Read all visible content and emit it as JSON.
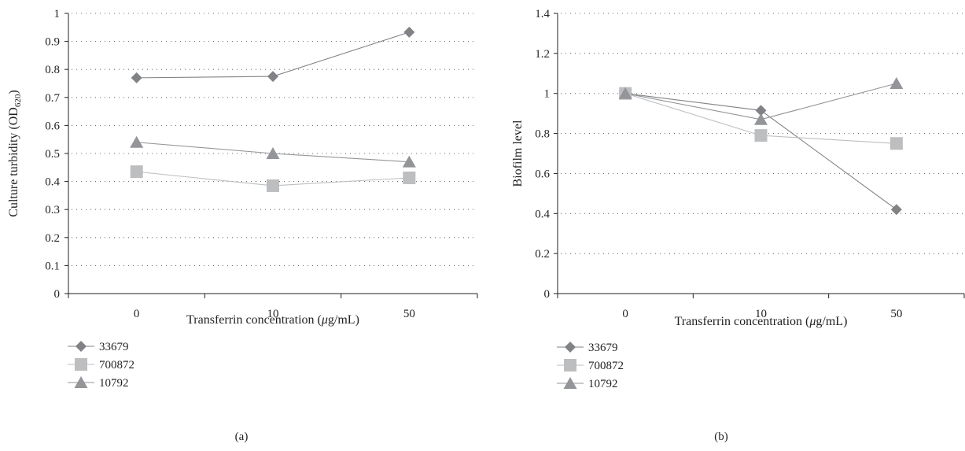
{
  "colors": {
    "axis": "#231f20",
    "grid": "#6d6e71"
  },
  "chart_data": [
    {
      "type": "line",
      "panel_label": "(a)",
      "xlabel_main": "Transferrin concentration (",
      "xlabel_mu": "μ",
      "xlabel_tail": "g/mL)",
      "ylabel_main": "Culture turbidity (OD",
      "ylabel_sub": "620",
      "ylabel_tail": ")",
      "categories": [
        "0",
        "10",
        "50"
      ],
      "ylim": [
        0,
        1
      ],
      "yticks": [
        "0",
        "0.1",
        "0.2",
        "0.3",
        "0.4",
        "0.5",
        "0.6",
        "0.7",
        "0.8",
        "0.9",
        "1"
      ],
      "grid": true,
      "legend_position": "bottom-left",
      "series": [
        {
          "name": "33679",
          "marker": "diamond",
          "color": "#808285",
          "values": [
            0.77,
            0.775,
            0.933
          ]
        },
        {
          "name": "700872",
          "marker": "square",
          "color": "#bcbec0",
          "values": [
            0.435,
            0.385,
            0.413
          ]
        },
        {
          "name": "10792",
          "marker": "triangle",
          "color": "#939598",
          "values": [
            0.54,
            0.5,
            0.47
          ]
        }
      ]
    },
    {
      "type": "line",
      "panel_label": "(b)",
      "xlabel_main": "Transferrin concentration (",
      "xlabel_mu": "μ",
      "xlabel_tail": "g/mL)",
      "ylabel_main": "Biofilm level",
      "ylabel_sub": "",
      "ylabel_tail": "",
      "categories": [
        "0",
        "10",
        "50"
      ],
      "ylim": [
        0,
        1.4
      ],
      "yticks": [
        "0",
        "0.2",
        "0.4",
        "0.6",
        "0.8",
        "1",
        "1.2",
        "1.4"
      ],
      "grid": true,
      "legend_position": "bottom-left",
      "series": [
        {
          "name": "33679",
          "marker": "diamond",
          "color": "#808285",
          "values": [
            1.0,
            0.915,
            0.42
          ]
        },
        {
          "name": "700872",
          "marker": "square",
          "color": "#bcbec0",
          "values": [
            1.0,
            0.79,
            0.75
          ]
        },
        {
          "name": "10792",
          "marker": "triangle",
          "color": "#939598",
          "values": [
            1.0,
            0.87,
            1.05
          ]
        }
      ]
    }
  ]
}
